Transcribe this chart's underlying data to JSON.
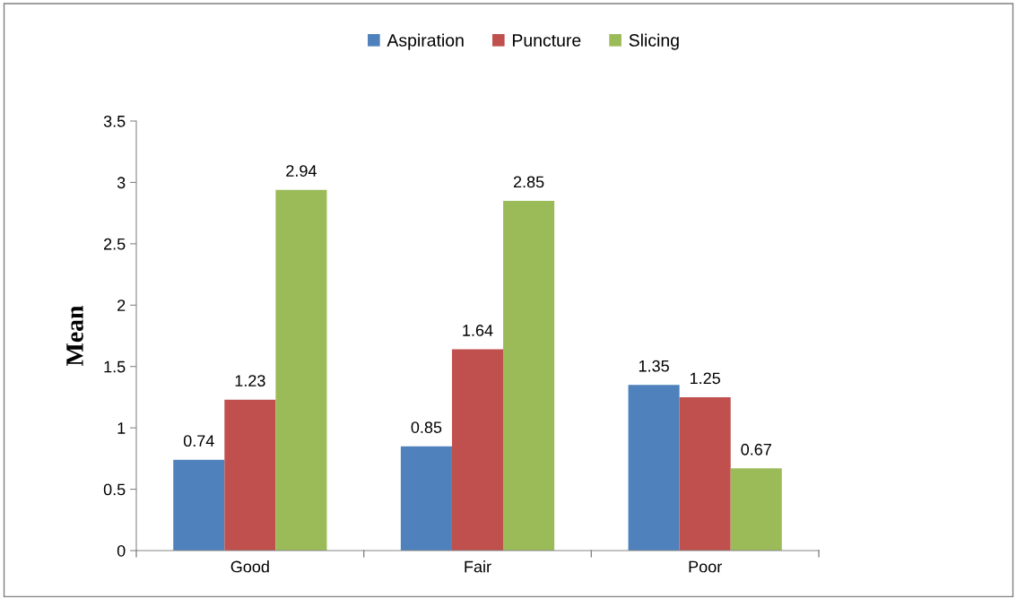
{
  "chart_data": {
    "type": "bar",
    "ylabel": "Mean",
    "categories": [
      "Good",
      "Fair",
      "Poor"
    ],
    "series": [
      {
        "name": "Aspiration",
        "color": "#4f81bd",
        "values": [
          0.74,
          0.85,
          1.35
        ]
      },
      {
        "name": "Puncture",
        "color": "#c0504d",
        "values": [
          1.23,
          1.64,
          1.25
        ]
      },
      {
        "name": "Slicing",
        "color": "#9bbb59",
        "values": [
          2.94,
          2.85,
          0.67
        ]
      }
    ],
    "ylim": [
      0,
      3.5
    ],
    "yticks": [
      0,
      0.5,
      1,
      1.5,
      2,
      2.5,
      3,
      3.5
    ],
    "data_labels": true,
    "grid": false,
    "legend": "top"
  }
}
